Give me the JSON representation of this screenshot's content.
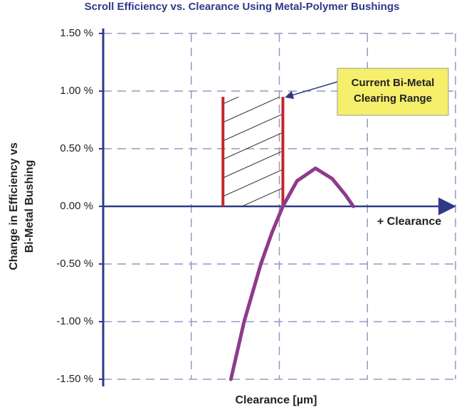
{
  "chart_data": {
    "type": "line",
    "title": "Scroll Efficiency vs. Clearance Using Metal-Polymer Bushings",
    "ylabel": [
      "Change in Efficiency vs",
      "Bi-Metal Bushing"
    ],
    "xlabel": "Clearance [µm]",
    "x_arrow_label": "+ Clearance",
    "callout": [
      "Current Bi-Metal",
      "Clearing Range"
    ],
    "x": [
      1.45,
      1.6,
      1.79,
      1.92,
      2.04,
      2.2,
      2.41,
      2.6,
      2.75,
      2.84
    ],
    "values": [
      -1.5,
      -1.0,
      -0.5,
      -0.22,
      0,
      0.22,
      0.33,
      0.24,
      0.1,
      0
    ],
    "color": "#8e3b8c",
    "range": {
      "x": [
        1.36,
        2.04
      ],
      "top": 0.95,
      "color": "#c3262e"
    },
    "xlim": [
      0,
      4
    ],
    "xticks": [
      1,
      2,
      3,
      4
    ],
    "ylim": [
      -1.5,
      1.5
    ],
    "yticks": [
      {
        "value": 1.5,
        "label": "1.50 %"
      },
      {
        "value": 1.0,
        "label": "1.00 %"
      },
      {
        "value": 0.5,
        "label": "0.50 %"
      },
      {
        "value": 0,
        "label": "0.00 %"
      },
      {
        "value": -0.5,
        "label": "-0.50 %"
      },
      {
        "value": -1.0,
        "label": "-1.00 %"
      },
      {
        "value": -1.5,
        "label": "-1.50 %"
      }
    ],
    "grid": true
  }
}
